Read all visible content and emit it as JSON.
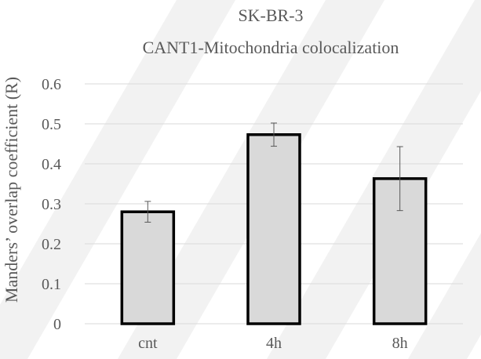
{
  "chart_data": {
    "type": "bar",
    "title_lines": [
      "SK-BR-3",
      "CANT1-Mitochondria  colocalization"
    ],
    "ylabel": "Manders’ overlap coefficient (R)",
    "xlabel": "",
    "categories": [
      "cnt",
      "4h",
      "8h"
    ],
    "values": [
      0.28,
      0.473,
      0.363
    ],
    "error_bars": [
      0.026,
      0.029,
      0.08
    ],
    "ylim": [
      0,
      0.6
    ],
    "yticks": [
      0,
      0.1,
      0.2,
      0.3,
      0.4,
      0.5,
      0.6
    ],
    "ytick_labels": [
      "0",
      "0.1",
      "0.2",
      "0.3",
      "0.4",
      "0.5",
      "0.6"
    ],
    "grid": true,
    "legend": "none",
    "colors": {
      "bar_fill": "#d9d9d9",
      "bar_stroke": "#000000",
      "grid": "#d9d9d9",
      "text": "#595959",
      "error": "#595959",
      "watermark": "#f2f2f2"
    }
  }
}
